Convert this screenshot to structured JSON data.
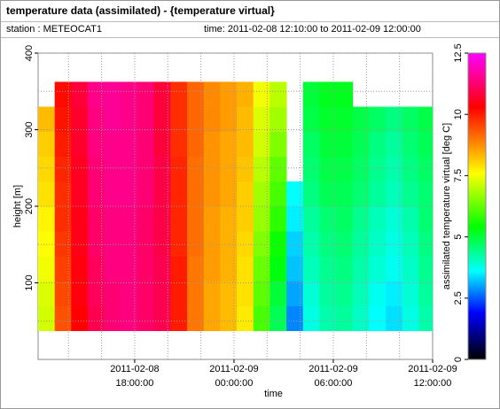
{
  "header": {
    "title": "temperature data (assimilated) - {temperature virtual}",
    "station": "station : METEOCAT1",
    "time_range": "time: 2011-02-08 12:10:00 to 2011-02-09 12:00:00"
  },
  "chart_data": {
    "type": "heatmap",
    "xlabel": "time",
    "ylabel": "height [m]",
    "xlim": [
      "2011-02-08 12:10:00",
      "2011-02-09 12:00:00"
    ],
    "xticks": [
      {
        "value": "2011-02-08 18:00:00",
        "label": [
          "2011-02-08",
          "18:00:00"
        ]
      },
      {
        "value": "2011-02-09 00:00:00",
        "label": [
          "2011-02-09",
          "00:00:00"
        ]
      },
      {
        "value": "2011-02-09 06:00:00",
        "label": [
          "2011-02-09",
          "06:00:00"
        ]
      },
      {
        "value": "2011-02-09 12:00:00",
        "label": [
          "2011-02-09",
          "12:00:00"
        ]
      }
    ],
    "xticks_minor": [
      "2011-02-08 14:00:00",
      "2011-02-08 16:00:00",
      "2011-02-08 20:00:00",
      "2011-02-08 22:00:00",
      "2011-02-09 02:00:00",
      "2011-02-09 04:00:00",
      "2011-02-09 08:00:00",
      "2011-02-09 10:00:00"
    ],
    "ylim": [
      0,
      400
    ],
    "yticks": [
      100,
      200,
      300,
      400
    ],
    "yticks_minor": [
      50,
      150,
      250,
      350
    ],
    "grid": true,
    "x_edges": [
      "2011-02-08 12:10:00",
      "2011-02-08 13:10:00",
      "2011-02-08 14:10:00",
      "2011-02-08 15:10:00",
      "2011-02-08 16:10:00",
      "2011-02-08 17:10:00",
      "2011-02-08 18:10:00",
      "2011-02-08 19:10:00",
      "2011-02-08 20:10:00",
      "2011-02-08 21:10:00",
      "2011-02-08 22:10:00",
      "2011-02-08 23:10:00",
      "2011-02-09 00:10:00",
      "2011-02-09 01:10:00",
      "2011-02-09 02:10:00",
      "2011-02-09 03:10:00",
      "2011-02-09 04:10:00",
      "2011-02-09 05:10:00",
      "2011-02-09 06:10:00",
      "2011-02-09 07:10:00",
      "2011-02-09 08:10:00",
      "2011-02-09 09:10:00",
      "2011-02-09 10:10:00",
      "2011-02-09 11:10:00",
      "2011-02-09 12:00:00"
    ],
    "y_edges": [
      37.5,
      70,
      102.5,
      135,
      167.5,
      200,
      232.5,
      265,
      297.5,
      330,
      362.5
    ],
    "z": [
      [
        7.2,
        9.4,
        10.3,
        11.0,
        11.3,
        11.4,
        11.2,
        11.0,
        10.0,
        9.0,
        8.5,
        8.3,
        7.8,
        6.0,
        4.8,
        2.8,
        3.8,
        4.2,
        4.3,
        4.0,
        3.6,
        3.4,
        3.8,
        4.2
      ],
      [
        7.3,
        9.5,
        10.4,
        11.1,
        11.3,
        11.4,
        11.2,
        11.0,
        10.0,
        9.0,
        8.5,
        8.3,
        7.9,
        6.2,
        5.0,
        3.0,
        3.9,
        4.3,
        4.4,
        4.1,
        3.7,
        3.5,
        3.9,
        4.3
      ],
      [
        7.5,
        9.6,
        10.4,
        11.1,
        11.4,
        11.4,
        11.2,
        11.0,
        10.0,
        9.0,
        8.6,
        8.4,
        7.9,
        6.3,
        5.3,
        3.2,
        4.1,
        4.4,
        4.5,
        4.2,
        3.9,
        3.7,
        4.0,
        4.4
      ],
      [
        7.6,
        9.7,
        10.5,
        11.2,
        11.4,
        11.4,
        11.2,
        10.9,
        9.9,
        9.1,
        8.6,
        8.4,
        8.0,
        6.5,
        5.5,
        3.3,
        4.2,
        4.5,
        4.6,
        4.3,
        4.0,
        3.8,
        4.1,
        4.5
      ],
      [
        7.7,
        9.8,
        10.5,
        11.2,
        11.4,
        11.4,
        11.2,
        10.9,
        9.9,
        9.1,
        8.6,
        8.4,
        8.1,
        6.7,
        5.8,
        3.5,
        4.3,
        4.6,
        4.7,
        4.4,
        4.1,
        3.9,
        4.2,
        4.6
      ],
      [
        7.9,
        9.8,
        10.6,
        11.3,
        11.5,
        11.5,
        11.3,
        10.9,
        9.9,
        9.1,
        8.7,
        8.5,
        8.1,
        6.8,
        6.0,
        3.6,
        4.5,
        4.8,
        4.8,
        4.6,
        4.3,
        4.1,
        4.4,
        4.6
      ],
      [
        8.0,
        9.9,
        10.6,
        11.3,
        11.5,
        11.5,
        11.3,
        10.9,
        9.9,
        9.1,
        8.7,
        8.5,
        8.2,
        7.0,
        6.2,
        null,
        4.6,
        4.9,
        4.9,
        4.7,
        4.4,
        4.2,
        4.5,
        4.7
      ],
      [
        8.1,
        10.0,
        10.7,
        11.4,
        11.5,
        11.5,
        11.3,
        10.8,
        9.8,
        9.2,
        8.7,
        8.5,
        8.3,
        7.2,
        6.5,
        null,
        4.7,
        5.0,
        5.0,
        4.8,
        4.5,
        4.3,
        4.6,
        4.8
      ],
      [
        8.3,
        10.1,
        10.7,
        11.4,
        11.6,
        11.5,
        11.3,
        10.8,
        9.8,
        9.2,
        8.8,
        8.6,
        8.3,
        7.3,
        6.8,
        null,
        4.9,
        5.1,
        5.1,
        4.9,
        4.7,
        4.5,
        4.7,
        4.9
      ],
      [
        null,
        10.2,
        10.8,
        11.5,
        11.6,
        11.5,
        11.3,
        10.8,
        9.8,
        9.2,
        8.8,
        8.6,
        8.4,
        7.5,
        7.0,
        null,
        5.0,
        5.2,
        5.2,
        null,
        null,
        null,
        null,
        null
      ]
    ],
    "colorbar": {
      "label": "assimilated temperature virtual [deg C]",
      "lim": [
        0,
        12.5
      ],
      "ticks": [
        0,
        2.5,
        5,
        7.5,
        10,
        12.5
      ],
      "stops": [
        {
          "value": 0,
          "color": "#000000"
        },
        {
          "value": 1.9,
          "color": "#0000ff"
        },
        {
          "value": 3.6,
          "color": "#00ffff"
        },
        {
          "value": 5.4,
          "color": "#00ff00"
        },
        {
          "value": 7.6,
          "color": "#ffff00"
        },
        {
          "value": 8.9,
          "color": "#ff8000"
        },
        {
          "value": 10.3,
          "color": "#ff0000"
        },
        {
          "value": 12.5,
          "color": "#ff00ff"
        }
      ]
    }
  }
}
